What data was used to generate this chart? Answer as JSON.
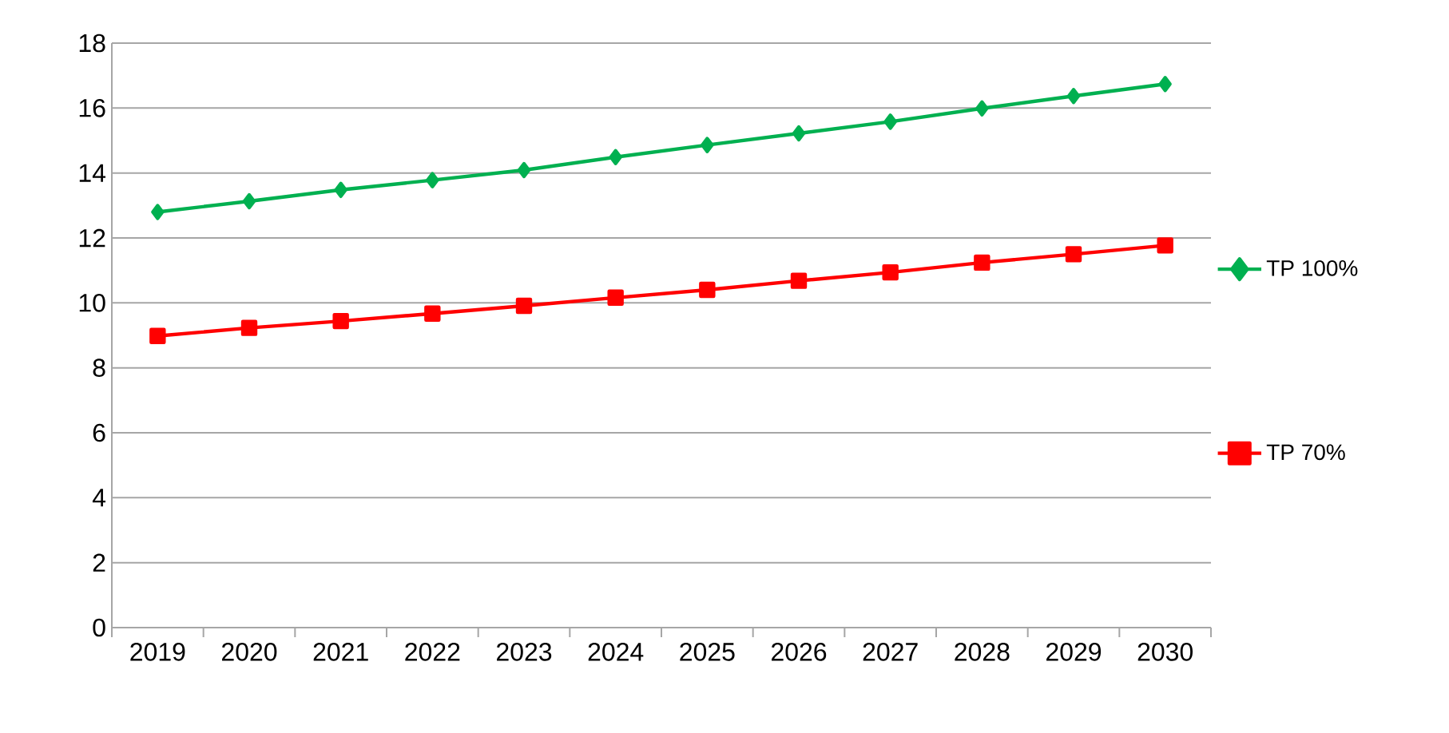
{
  "chart_data": {
    "type": "line",
    "categories": [
      "2019",
      "2020",
      "2021",
      "2022",
      "2023",
      "2024",
      "2025",
      "2026",
      "2027",
      "2028",
      "2029",
      "2030"
    ],
    "series": [
      {
        "name": "TP 100%",
        "color": "#00b050",
        "marker": "diamond",
        "values": [
          12.8,
          13.13,
          13.48,
          13.78,
          14.09,
          14.49,
          14.86,
          15.22,
          15.58,
          15.99,
          16.37,
          16.74
        ]
      },
      {
        "name": "TP 70%",
        "color": "#ff0000",
        "marker": "square",
        "values": [
          8.98,
          9.23,
          9.44,
          9.67,
          9.91,
          10.16,
          10.4,
          10.68,
          10.94,
          11.24,
          11.5,
          11.77
        ]
      }
    ],
    "ylim": [
      0,
      18
    ],
    "yticks": [
      0,
      2,
      4,
      6,
      8,
      10,
      12,
      14,
      16,
      18
    ],
    "grid": "y",
    "legend": "right",
    "line_style": "solid"
  }
}
